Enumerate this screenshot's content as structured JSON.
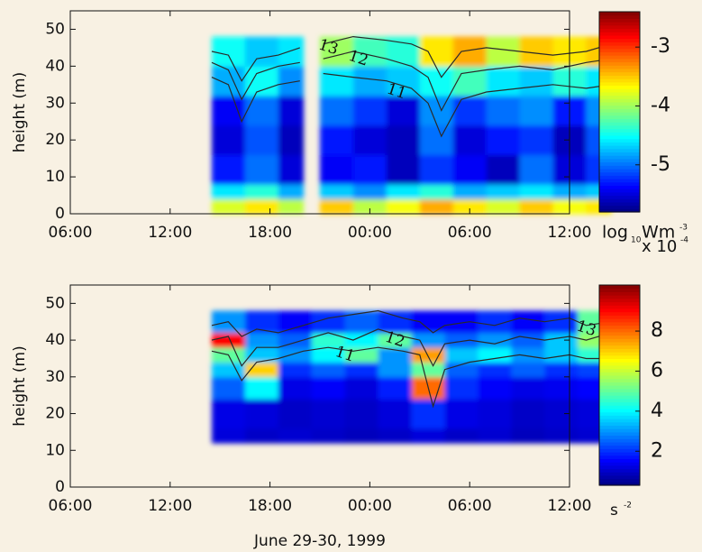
{
  "chart_data": [
    {
      "type": "heatmap",
      "ylabel": "height (m)",
      "colormap": "jet",
      "xlim": [
        0,
        30
      ],
      "ylim": [
        0,
        55
      ],
      "xticks": [
        {
          "value": 0,
          "label": "06:00"
        },
        {
          "value": 6,
          "label": "12:00"
        },
        {
          "value": 12,
          "label": "18:00"
        },
        {
          "value": 18,
          "label": "00:00"
        },
        {
          "value": 24,
          "label": "06:00"
        },
        {
          "value": 30,
          "label": "12:00"
        }
      ],
      "yticks": [
        0,
        10,
        20,
        30,
        40,
        50
      ],
      "x_edges": [
        8.5,
        10.5,
        12.5,
        14.0,
        15.0,
        17,
        19,
        21,
        23,
        25,
        27,
        29,
        31,
        32.5
      ],
      "y_edges": [
        0,
        4,
        8,
        16,
        24,
        32,
        40,
        48
      ],
      "z": [
        [
          -3.8,
          -3.6,
          -3.9,
          null,
          -3.5,
          -3.9,
          -3.7,
          -3.4,
          -3.6,
          -3.8,
          -3.5,
          -3.7,
          -3.6
        ],
        [
          -4.6,
          -4.4,
          -4.8,
          null,
          -4.7,
          -4.9,
          -4.6,
          -4.4,
          -4.8,
          -4.7,
          -4.6,
          -4.8,
          -4.7
        ],
        [
          -5.3,
          -5.0,
          -5.5,
          null,
          -5.4,
          -5.3,
          -5.6,
          -5.2,
          -5.4,
          -5.6,
          -5.0,
          -5.5,
          -5.2
        ],
        [
          -5.5,
          -5.1,
          -5.6,
          null,
          -5.3,
          -5.5,
          -5.6,
          -5.0,
          -5.5,
          -5.3,
          -5.2,
          -5.6,
          -5.1
        ],
        [
          -5.4,
          -5.0,
          -5.5,
          null,
          -5.0,
          -5.2,
          -5.5,
          -4.9,
          -5.2,
          -5.0,
          -4.9,
          -5.3,
          -4.9
        ],
        [
          -4.8,
          -4.5,
          -4.9,
          null,
          -4.6,
          -4.8,
          -4.7,
          -4.5,
          -4.3,
          -4.6,
          -4.7,
          -4.4,
          -4.6
        ],
        [
          -4.5,
          -4.7,
          -4.6,
          null,
          -4.0,
          -4.3,
          -4.4,
          -3.6,
          -3.4,
          -3.9,
          -3.5,
          -3.6,
          -3.5
        ]
      ],
      "zlim": [
        -5.8,
        -2.4
      ],
      "zticks": [
        -3,
        -4,
        -5
      ],
      "colorbar_label": [
        "log",
        "10",
        "Wm",
        "-3"
      ],
      "contour_color": "#2a2a2a",
      "contours": {
        "x": [
          8.5,
          9.5,
          10.3,
          11.2,
          12.5,
          13.8,
          14.5,
          15.2,
          17,
          19,
          20.5,
          21.5,
          22.3,
          23.5,
          25,
          27,
          29,
          31,
          32.5
        ],
        "series": [
          {
            "name": "13",
            "values": [
              44,
              43,
              36,
              42,
              43,
              45,
              null,
              46,
              48,
              47,
              46,
              44,
              37,
              44,
              45,
              44,
              43,
              44,
              46
            ]
          },
          {
            "name": "12",
            "values": [
              41,
              39,
              31,
              38,
              40,
              41,
              null,
              42,
              44,
              42,
              40,
              37,
              28,
              38,
              39,
              40,
              39,
              41,
              42
            ]
          },
          {
            "name": "11",
            "values": [
              37,
              35,
              25,
              33,
              35,
              36,
              null,
              38,
              37,
              36,
              34,
              30,
              21,
              31,
              33,
              34,
              35,
              34,
              35
            ]
          }
        ]
      }
    },
    {
      "type": "heatmap",
      "ylabel": "height (m)",
      "xlabel": "June 29-30, 1999",
      "colormap": "jet",
      "xlim": [
        0,
        30
      ],
      "ylim": [
        0,
        55
      ],
      "xticks": [
        {
          "value": 0,
          "label": "06:00"
        },
        {
          "value": 6,
          "label": "12:00"
        },
        {
          "value": 12,
          "label": "18:00"
        },
        {
          "value": 18,
          "label": "00:00"
        },
        {
          "value": 24,
          "label": "06:00"
        },
        {
          "value": 30,
          "label": "12:00"
        }
      ],
      "yticks": [
        0,
        10,
        20,
        30,
        40,
        50
      ],
      "x_edges": [
        8.5,
        10.5,
        12.5,
        14.5,
        16.5,
        18.5,
        20.5,
        22.5,
        24.5,
        26.5,
        28.5,
        30.5,
        32.5
      ],
      "y_edges": [
        12,
        16,
        24,
        30,
        34,
        38,
        42,
        48
      ],
      "z": [
        [
          1.2,
          1.0,
          1.1,
          1.0,
          0.9,
          1.0,
          1.2,
          1.0,
          1.1,
          0.9,
          1.0,
          1.1
        ],
        [
          1.3,
          1.2,
          1.0,
          1.1,
          1.0,
          1.2,
          2.0,
          1.3,
          1.2,
          1.0,
          1.1,
          1.2
        ],
        [
          2.5,
          4.0,
          1.3,
          1.5,
          1.2,
          1.8,
          8.0,
          2.0,
          1.5,
          1.3,
          1.4,
          1.6
        ],
        [
          3.5,
          7.0,
          2.0,
          2.5,
          2.0,
          3.0,
          5.0,
          2.5,
          2.0,
          2.5,
          2.0,
          2.2
        ],
        [
          5.0,
          3.5,
          3.0,
          4.0,
          5.0,
          3.0,
          7.5,
          3.5,
          4.0,
          3.0,
          3.5,
          4.5
        ],
        [
          9.0,
          3.0,
          2.5,
          4.5,
          4.0,
          5.0,
          3.0,
          2.5,
          3.0,
          2.5,
          3.5,
          5.5
        ],
        [
          3.0,
          2.0,
          1.5,
          2.0,
          2.5,
          2.0,
          1.5,
          1.5,
          2.0,
          1.5,
          2.0,
          5.0
        ]
      ],
      "zlim": [
        0.3,
        10.3
      ],
      "zticks": [
        8,
        6,
        4,
        2
      ],
      "colorbar_multiplier": [
        "x 10",
        "-4"
      ],
      "colorbar_label": [
        "s",
        "-2"
      ],
      "contour_color": "#2a2a2a",
      "contours": {
        "x": [
          8.5,
          9.5,
          10.3,
          11.2,
          12.5,
          14,
          15.5,
          17,
          18.5,
          20,
          21,
          21.8,
          22.5,
          24,
          25.5,
          27,
          28.5,
          30,
          31,
          32.5
        ],
        "series": [
          {
            "name": "13",
            "values": [
              44,
              45,
              41,
              43,
              42,
              44,
              46,
              47,
              48,
              46,
              45,
              42,
              44,
              45,
              44,
              46,
              45,
              46,
              44,
              45
            ]
          },
          {
            "name": "12",
            "values": [
              40,
              41,
              33,
              38,
              38,
              40,
              42,
              40,
              43,
              41,
              40,
              33,
              39,
              40,
              39,
              41,
              40,
              41,
              40,
              42
            ]
          },
          {
            "name": "11",
            "values": [
              37,
              36,
              29,
              34,
              35,
              37,
              38,
              37,
              38,
              37,
              36,
              22,
              32,
              34,
              35,
              36,
              35,
              36,
              35,
              35
            ]
          }
        ]
      }
    }
  ]
}
